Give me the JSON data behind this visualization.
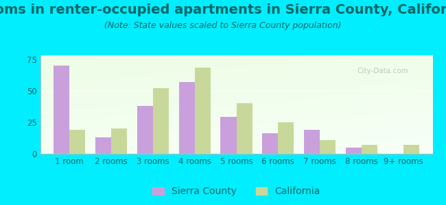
{
  "title": "Rooms in renter-occupied apartments in Sierra County, California",
  "subtitle": "(Note: State values scaled to Sierra County population)",
  "categories": [
    "1 room",
    "2 rooms",
    "3 rooms",
    "4 rooms",
    "5 rooms",
    "6 rooms",
    "7 rooms",
    "8 rooms",
    "9+ rooms"
  ],
  "sierra_county": [
    70,
    13,
    38,
    57,
    29,
    16,
    19,
    5,
    0
  ],
  "california": [
    19,
    20,
    52,
    68,
    40,
    25,
    11,
    7,
    7
  ],
  "sierra_color": "#c9a0dc",
  "california_color": "#c8d89a",
  "background_outer": "#00eeff",
  "ylim": [
    0,
    78
  ],
  "yticks": [
    0,
    25,
    50,
    75
  ],
  "bar_width": 0.38,
  "legend_sierra": "Sierra County",
  "legend_california": "California",
  "title_fontsize": 14,
  "subtitle_fontsize": 9,
  "axis_label_fontsize": 8.5,
  "legend_fontsize": 10,
  "title_color": "#006666",
  "subtitle_color": "#006666",
  "tick_color": "#006666"
}
